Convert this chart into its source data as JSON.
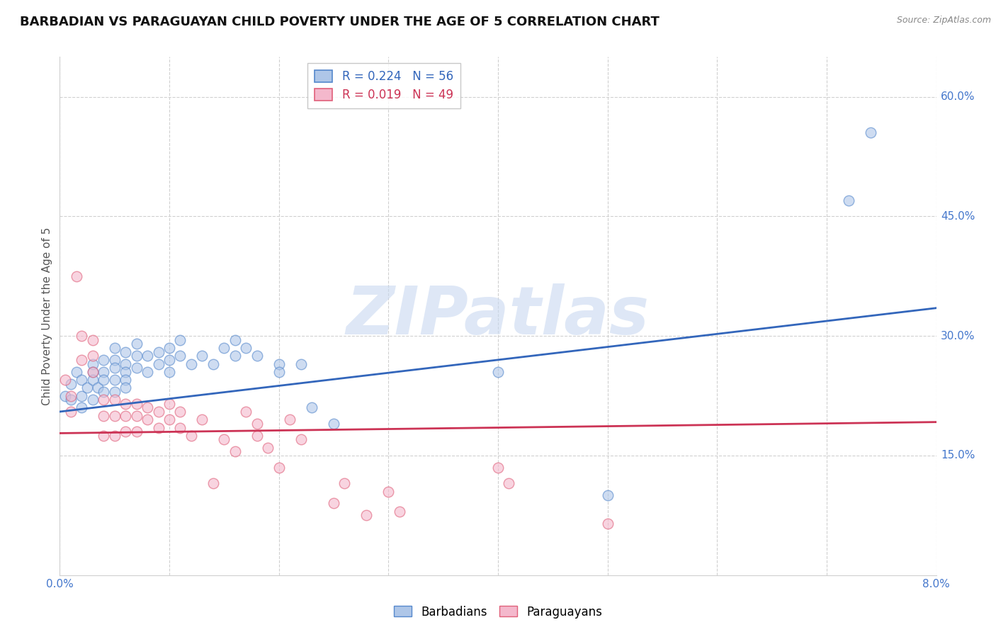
{
  "title": "BARBADIAN VS PARAGUAYAN CHILD POVERTY UNDER THE AGE OF 5 CORRELATION CHART",
  "source": "Source: ZipAtlas.com",
  "ylabel": "Child Poverty Under the Age of 5",
  "xlim": [
    0.0,
    0.08
  ],
  "ylim": [
    0.0,
    0.65
  ],
  "xticks": [
    0.0,
    0.01,
    0.02,
    0.03,
    0.04,
    0.05,
    0.06,
    0.07,
    0.08
  ],
  "xticklabels": [
    "0.0%",
    "",
    "",
    "",
    "",
    "",
    "",
    "",
    "8.0%"
  ],
  "ytick_positions": [
    0.15,
    0.3,
    0.45,
    0.6
  ],
  "ytick_labels": [
    "15.0%",
    "30.0%",
    "45.0%",
    "60.0%"
  ],
  "barbadian_color": "#aec6e8",
  "paraguayan_color": "#f4b8cc",
  "barbadian_edge": "#5588cc",
  "paraguayan_edge": "#e0607a",
  "blue_line_color": "#3366bb",
  "pink_line_color": "#cc3355",
  "grid_color": "#d0d0d0",
  "background_color": "#ffffff",
  "legend_barbadian_R": "0.224",
  "legend_barbadian_N": "56",
  "legend_paraguayan_R": "0.019",
  "legend_paraguayan_N": "49",
  "watermark": "ZIPatlas",
  "watermark_color": "#c8d8f0",
  "title_fontsize": 13,
  "axis_label_fontsize": 11,
  "tick_fontsize": 11,
  "legend_fontsize": 12,
  "blue_line_x0": 0.0,
  "blue_line_x1": 0.08,
  "blue_line_y0": 0.205,
  "blue_line_y1": 0.335,
  "pink_line_x0": 0.0,
  "pink_line_x1": 0.08,
  "pink_line_y0": 0.178,
  "pink_line_y1": 0.192,
  "barbadian_x": [
    0.0005,
    0.001,
    0.001,
    0.0015,
    0.002,
    0.002,
    0.002,
    0.0025,
    0.003,
    0.003,
    0.003,
    0.003,
    0.0035,
    0.004,
    0.004,
    0.004,
    0.004,
    0.005,
    0.005,
    0.005,
    0.005,
    0.005,
    0.006,
    0.006,
    0.006,
    0.006,
    0.006,
    0.007,
    0.007,
    0.007,
    0.008,
    0.008,
    0.009,
    0.009,
    0.01,
    0.01,
    0.01,
    0.011,
    0.011,
    0.012,
    0.013,
    0.014,
    0.015,
    0.016,
    0.016,
    0.017,
    0.018,
    0.02,
    0.02,
    0.022,
    0.023,
    0.025,
    0.04,
    0.05,
    0.072,
    0.074
  ],
  "barbadian_y": [
    0.225,
    0.24,
    0.22,
    0.255,
    0.245,
    0.225,
    0.21,
    0.235,
    0.265,
    0.255,
    0.245,
    0.22,
    0.235,
    0.27,
    0.255,
    0.245,
    0.23,
    0.285,
    0.27,
    0.26,
    0.245,
    0.23,
    0.28,
    0.265,
    0.255,
    0.245,
    0.235,
    0.29,
    0.275,
    0.26,
    0.275,
    0.255,
    0.28,
    0.265,
    0.285,
    0.27,
    0.255,
    0.295,
    0.275,
    0.265,
    0.275,
    0.265,
    0.285,
    0.295,
    0.275,
    0.285,
    0.275,
    0.265,
    0.255,
    0.265,
    0.21,
    0.19,
    0.255,
    0.1,
    0.47,
    0.555
  ],
  "paraguayan_x": [
    0.0005,
    0.001,
    0.001,
    0.0015,
    0.002,
    0.002,
    0.003,
    0.003,
    0.003,
    0.004,
    0.004,
    0.004,
    0.005,
    0.005,
    0.005,
    0.006,
    0.006,
    0.006,
    0.007,
    0.007,
    0.007,
    0.008,
    0.008,
    0.009,
    0.009,
    0.01,
    0.01,
    0.011,
    0.011,
    0.012,
    0.013,
    0.014,
    0.015,
    0.016,
    0.017,
    0.018,
    0.018,
    0.019,
    0.02,
    0.021,
    0.022,
    0.025,
    0.026,
    0.028,
    0.03,
    0.031,
    0.04,
    0.041,
    0.05
  ],
  "paraguayan_y": [
    0.245,
    0.225,
    0.205,
    0.375,
    0.3,
    0.27,
    0.295,
    0.275,
    0.255,
    0.22,
    0.2,
    0.175,
    0.22,
    0.2,
    0.175,
    0.215,
    0.2,
    0.18,
    0.215,
    0.2,
    0.18,
    0.21,
    0.195,
    0.205,
    0.185,
    0.215,
    0.195,
    0.205,
    0.185,
    0.175,
    0.195,
    0.115,
    0.17,
    0.155,
    0.205,
    0.19,
    0.175,
    0.16,
    0.135,
    0.195,
    0.17,
    0.09,
    0.115,
    0.075,
    0.105,
    0.08,
    0.135,
    0.115,
    0.065
  ]
}
